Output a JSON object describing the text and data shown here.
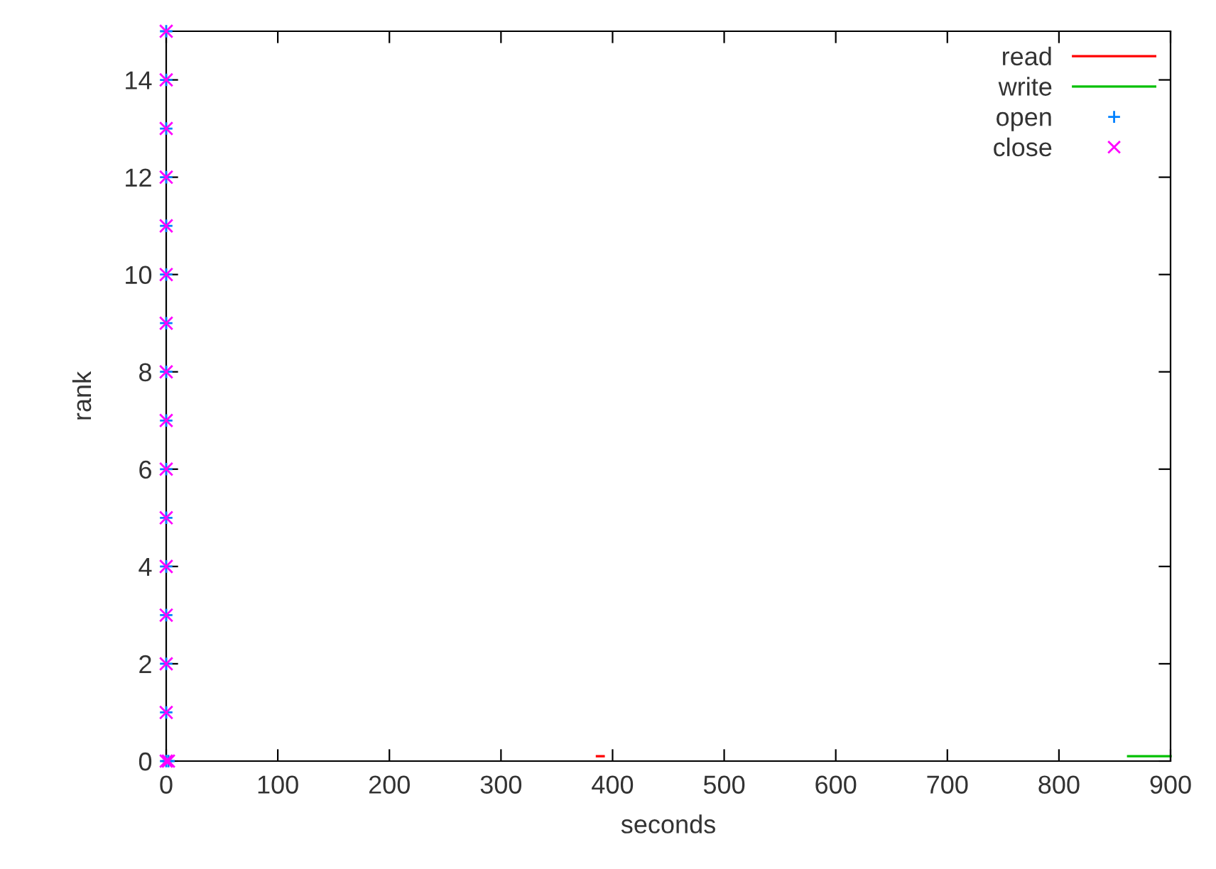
{
  "chart_data": {
    "type": "line",
    "xlabel": "seconds",
    "ylabel": "rank",
    "xlim": [
      0,
      900
    ],
    "xticks": [
      0,
      100,
      200,
      300,
      400,
      500,
      600,
      700,
      800,
      900
    ],
    "ylim": [
      0,
      15
    ],
    "yticks": [
      0,
      2,
      4,
      6,
      8,
      10,
      12,
      14
    ],
    "grid": false,
    "legend": "top right",
    "series": [
      {
        "name": "read",
        "color": "#ff0000",
        "x": [
          386,
          392
        ],
        "values": [
          0.1,
          0.1
        ]
      },
      {
        "name": "write",
        "color": "#00c000",
        "x": [
          862,
          900
        ],
        "values": [
          0.1,
          0.1
        ]
      },
      {
        "name": "open",
        "type": "scatter",
        "marker": "plus",
        "color": "#0080ff",
        "x": [
          0,
          0,
          0,
          0,
          0,
          0,
          0,
          0,
          0,
          0,
          0,
          0,
          0,
          0,
          0,
          0,
          2
        ],
        "values": [
          0,
          1,
          2,
          3,
          4,
          5,
          6,
          7,
          8,
          9,
          10,
          11,
          12,
          13,
          14,
          15,
          0
        ]
      },
      {
        "name": "close",
        "type": "scatter",
        "marker": "cross",
        "color": "#ff00ff",
        "x": [
          0,
          0,
          0,
          0,
          0,
          0,
          0,
          0,
          0,
          0,
          0,
          0,
          0,
          0,
          0,
          0,
          2
        ],
        "values": [
          0,
          1,
          2,
          3,
          4,
          5,
          6,
          7,
          8,
          9,
          10,
          11,
          12,
          13,
          14,
          15,
          0
        ]
      }
    ]
  }
}
